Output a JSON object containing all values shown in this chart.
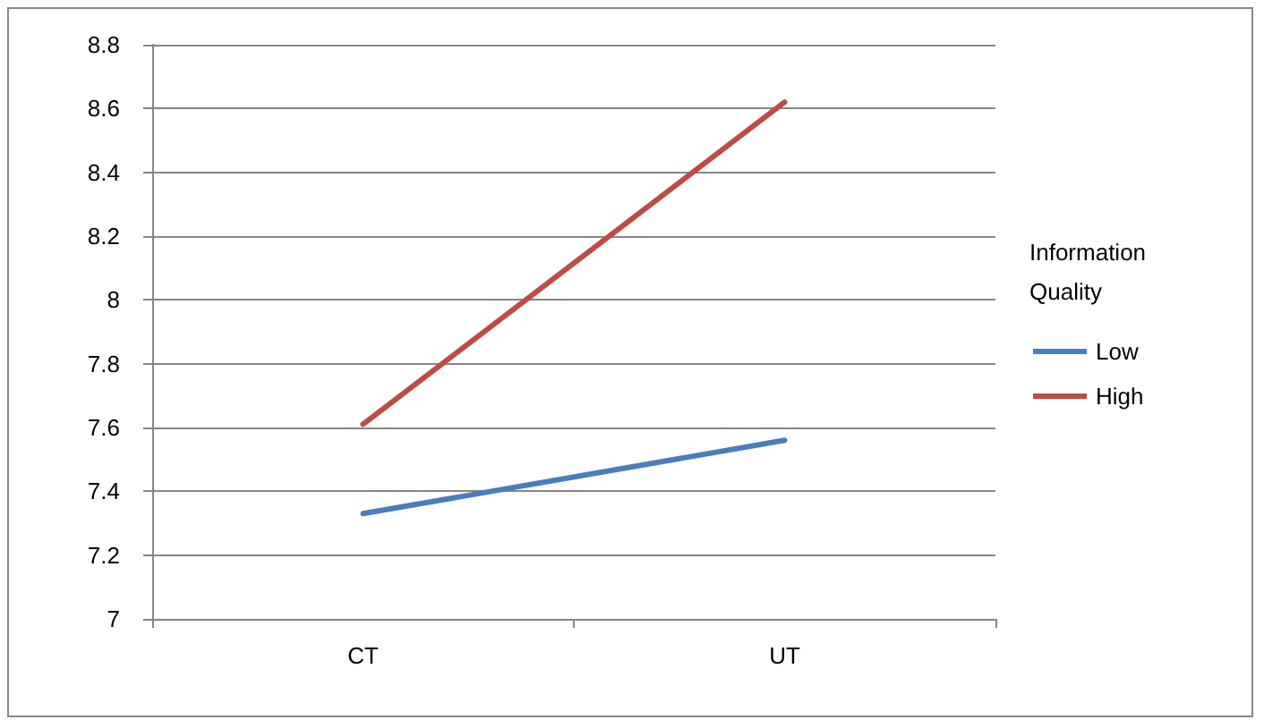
{
  "chart_data": {
    "type": "line",
    "categories": [
      "CT",
      "UT"
    ],
    "series": [
      {
        "name": "Low",
        "color": "#4a7ebb",
        "values": [
          7.33,
          7.56
        ]
      },
      {
        "name": "High",
        "color": "#be4b48",
        "values": [
          7.61,
          8.62
        ]
      }
    ],
    "ylim": [
      7,
      8.8
    ],
    "yticks": [
      7,
      7.2,
      7.4,
      7.6,
      7.8,
      8,
      8.2,
      8.4,
      8.6,
      8.8
    ],
    "grid": "y",
    "legend": "right",
    "legend_title": "Information Quality",
    "marker": "none",
    "line_style": "solid"
  }
}
